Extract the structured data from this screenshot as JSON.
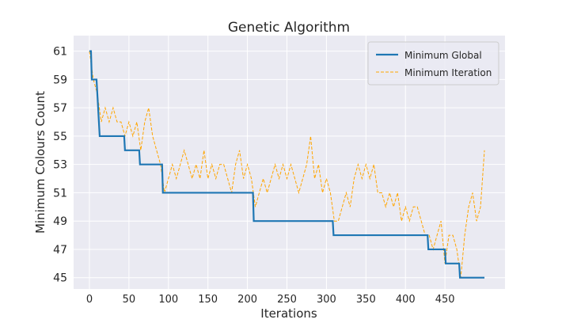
{
  "chart_data": {
    "type": "line",
    "title": "Genetic Algorithm",
    "x_label": "Iterations",
    "y_label": "Minimum Colours Count",
    "xlim": [
      -20,
      526
    ],
    "xticks": [
      0,
      50,
      100,
      150,
      200,
      250,
      300,
      350,
      400,
      450
    ],
    "ylim": [
      44.2,
      62.1
    ],
    "yticks": [
      45,
      47,
      49,
      51,
      53,
      55,
      57,
      59,
      61
    ],
    "grid": true,
    "legend": "upper right",
    "series": [
      {
        "name": "Minimum Global",
        "color": "#1f77b4",
        "dashed": false,
        "x": [
          0,
          2,
          3,
          9,
          10,
          11,
          12,
          13,
          44,
          45,
          63,
          64,
          92,
          93,
          207,
          208,
          308,
          309,
          428,
          429,
          450,
          451,
          468,
          469,
          500
        ],
        "values": [
          61,
          61,
          59,
          59,
          58,
          57,
          56,
          55,
          55,
          54,
          54,
          53,
          53,
          51,
          51,
          49,
          49,
          48,
          48,
          47,
          47,
          46,
          46,
          45,
          45
        ]
      },
      {
        "name": "Minimum Iteration",
        "color": "#ffa500",
        "dashed": true,
        "x": [
          0,
          5,
          10,
          15,
          20,
          25,
          30,
          35,
          40,
          45,
          50,
          55,
          60,
          65,
          70,
          75,
          80,
          85,
          90,
          95,
          100,
          105,
          110,
          115,
          120,
          125,
          130,
          135,
          140,
          145,
          150,
          155,
          160,
          165,
          170,
          175,
          180,
          185,
          190,
          195,
          200,
          205,
          210,
          215,
          220,
          225,
          230,
          235,
          240,
          245,
          250,
          255,
          260,
          265,
          270,
          275,
          280,
          285,
          290,
          295,
          300,
          305,
          310,
          315,
          320,
          325,
          330,
          335,
          340,
          345,
          350,
          355,
          360,
          365,
          370,
          375,
          380,
          385,
          390,
          395,
          400,
          405,
          410,
          415,
          420,
          425,
          430,
          435,
          440,
          445,
          450,
          455,
          460,
          465,
          470,
          475,
          480,
          485,
          490,
          495,
          500
        ],
        "values": [
          61,
          59,
          58,
          56,
          57,
          56,
          57,
          56,
          56,
          55,
          56,
          55,
          56,
          54,
          56,
          57,
          55,
          54,
          53,
          51,
          52,
          53,
          52,
          53,
          54,
          53,
          52,
          53,
          52,
          54,
          52,
          53,
          52,
          53,
          53,
          52,
          51,
          53,
          54,
          52,
          53,
          52,
          50,
          51,
          52,
          51,
          52,
          53,
          52,
          53,
          52,
          53,
          52,
          51,
          52,
          53,
          55,
          52,
          53,
          51,
          52,
          51,
          49,
          49,
          50,
          51,
          50,
          52,
          53,
          52,
          53,
          52,
          53,
          51,
          51,
          50,
          51,
          50,
          51,
          49,
          50,
          49,
          50,
          50,
          49,
          48,
          48,
          47,
          48,
          49,
          46,
          48,
          48,
          47,
          45,
          48,
          50,
          51,
          49,
          50,
          54
        ]
      }
    ]
  }
}
